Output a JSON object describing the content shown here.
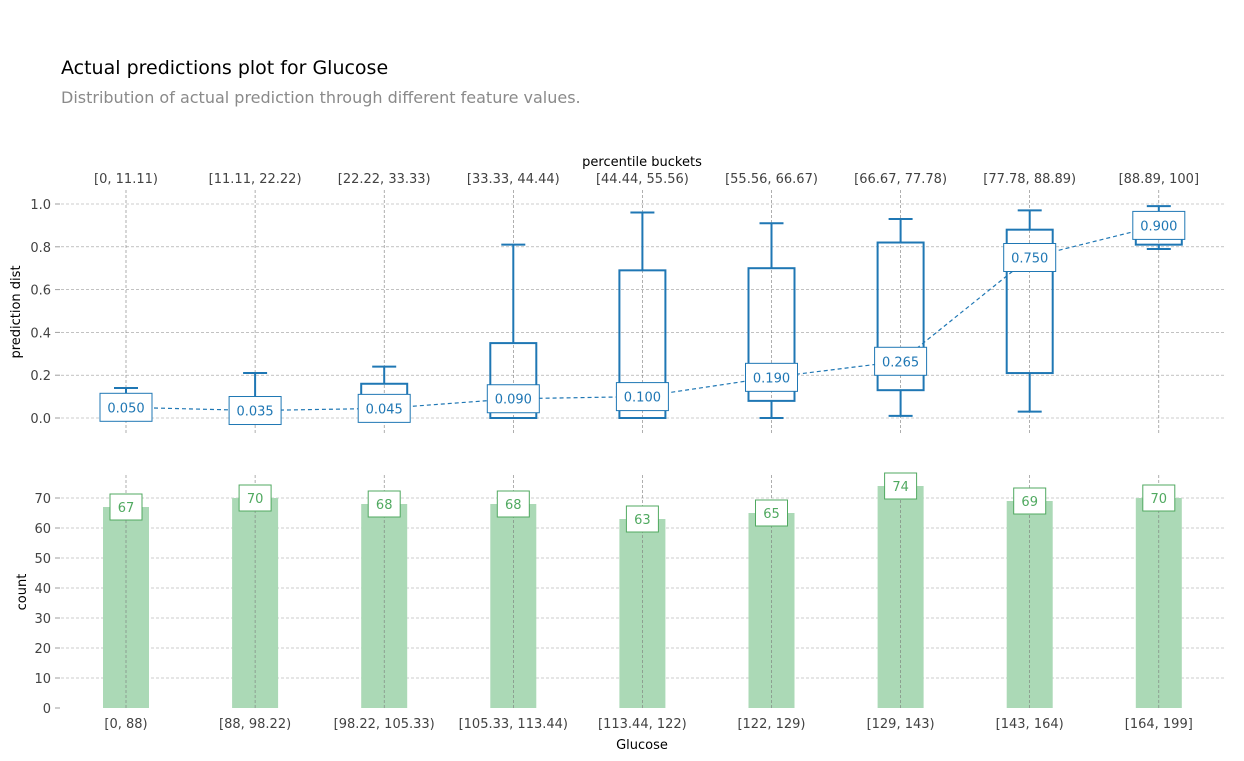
{
  "title": "Actual predictions plot for Glucose",
  "subtitle": "Distribution of actual prediction through different feature values.",
  "colors": {
    "box": "#1f77b4",
    "bar": "#abd9b6",
    "bar_label": "#50a960",
    "grid": "#9e9e9e",
    "tick_text": "#424242"
  },
  "chart_data": [
    {
      "type": "box",
      "top_xlabel": "percentile buckets",
      "top_categories": [
        "[0, 11.11)",
        "[11.11, 22.22)",
        "[22.22, 33.33)",
        "[33.33, 44.44)",
        "[44.44, 55.56)",
        "[55.56, 66.67)",
        "[66.67, 77.78)",
        "[77.78, 88.89)",
        "[88.89, 100]"
      ],
      "ylabel": "prediction dist",
      "ylim": [
        -0.07,
        1.07
      ],
      "yticks": [
        "1.0",
        "0.8",
        "0.6",
        "0.4",
        "0.2",
        "0.0"
      ],
      "ytick_values": [
        1.0,
        0.8,
        0.6,
        0.4,
        0.2,
        0.0
      ],
      "boxes": [
        {
          "whislo": 0.0,
          "q1": 0.0,
          "q3": 0.08,
          "whishi": 0.14
        },
        {
          "whislo": 0.0,
          "q1": 0.0,
          "q3": 0.09,
          "whishi": 0.21
        },
        {
          "whislo": 0.0,
          "q1": 0.0,
          "q3": 0.16,
          "whishi": 0.24
        },
        {
          "whislo": 0.0,
          "q1": 0.0,
          "q3": 0.35,
          "whishi": 0.81
        },
        {
          "whislo": 0.0,
          "q1": 0.0,
          "q3": 0.69,
          "whishi": 0.96
        },
        {
          "whislo": 0.0,
          "q1": 0.08,
          "q3": 0.7,
          "whishi": 0.91
        },
        {
          "whislo": 0.01,
          "q1": 0.13,
          "q3": 0.82,
          "whishi": 0.93
        },
        {
          "whislo": 0.03,
          "q1": 0.21,
          "q3": 0.88,
          "whishi": 0.97
        },
        {
          "whislo": 0.79,
          "q1": 0.81,
          "q3": 0.94,
          "whishi": 0.99
        }
      ],
      "medians": [
        0.05,
        0.035,
        0.045,
        0.09,
        0.1,
        0.19,
        0.265,
        0.75,
        0.9
      ],
      "median_labels": [
        "0.050",
        "0.035",
        "0.045",
        "0.090",
        "0.100",
        "0.190",
        "0.265",
        "0.750",
        "0.900"
      ]
    },
    {
      "type": "bar",
      "categories": [
        "[0, 88)",
        "[88, 98.22)",
        "[98.22, 105.33)",
        "[105.33, 113.44)",
        "[113.44, 122)",
        "[122, 129)",
        "[129, 143)",
        "[143, 164)",
        "[164, 199]"
      ],
      "values": [
        67,
        70,
        68,
        68,
        63,
        65,
        74,
        69,
        70
      ],
      "value_labels": [
        "67",
        "70",
        "68",
        "68",
        "63",
        "65",
        "74",
        "69",
        "70"
      ],
      "xlabel": "Glucose",
      "ylabel": "count",
      "ylim": [
        0,
        78
      ],
      "yticks": [
        "70",
        "60",
        "50",
        "40",
        "30",
        "20",
        "10",
        "0"
      ],
      "ytick_values": [
        70,
        60,
        50,
        40,
        30,
        20,
        10,
        0
      ]
    }
  ]
}
